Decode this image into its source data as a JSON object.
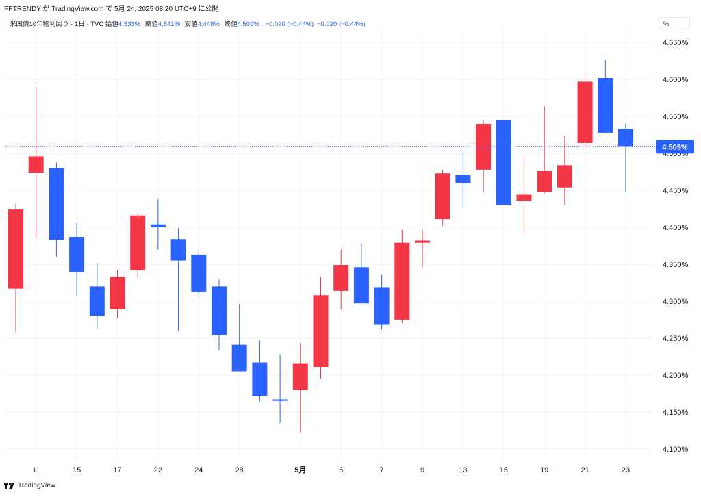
{
  "header": {
    "published": "FPTRENDY が TradingView.com で 5月 24, 2025 08:20 UTC+9 に公開"
  },
  "legend": {
    "symbol": "米国債10年物利回り · 1日 · TVC",
    "open_label": "始値",
    "open": "4.533%",
    "high_label": "高値",
    "high": "4.541%",
    "low_label": "安値",
    "low": "4.448%",
    "close_label": "終値",
    "close": "4.509%",
    "change": "−0.020 (−0.44%)",
    "change2": "−0.020 (−0.44%)"
  },
  "unit_button": "%",
  "footer": {
    "brand": "TradingView"
  },
  "colors": {
    "up": "#f23645",
    "down": "#2962ff",
    "grid": "#f0f3fa",
    "text": "#131722"
  },
  "chart_data": {
    "type": "candlestick",
    "y_unit": "%",
    "ylim": [
      4.085,
      4.665
    ],
    "yticks": [
      4.65,
      4.6,
      4.55,
      4.5,
      4.45,
      4.4,
      4.35,
      4.3,
      4.25,
      4.2,
      4.15,
      4.1
    ],
    "ytick_labels": [
      "4.650%",
      "4.600%",
      "4.550%",
      "4.500%",
      "4.450%",
      "4.400%",
      "4.350%",
      "4.300%",
      "4.250%",
      "4.200%",
      "4.150%",
      "4.100%"
    ],
    "x_labels": [
      {
        "label": "11",
        "index": 1
      },
      {
        "label": "15",
        "index": 3
      },
      {
        "label": "17",
        "index": 5
      },
      {
        "label": "22",
        "index": 7
      },
      {
        "label": "24",
        "index": 9
      },
      {
        "label": "28",
        "index": 11
      },
      {
        "label": "5月",
        "index": 14,
        "bold": true
      },
      {
        "label": "5",
        "index": 16
      },
      {
        "label": "7",
        "index": 18
      },
      {
        "label": "9",
        "index": 20
      },
      {
        "label": "13",
        "index": 22
      },
      {
        "label": "15",
        "index": 24
      },
      {
        "label": "19",
        "index": 26
      },
      {
        "label": "21",
        "index": 28
      },
      {
        "label": "23",
        "index": 30
      }
    ],
    "candles": [
      {
        "o": 4.317,
        "h": 4.432,
        "l": 4.259,
        "c": 4.424
      },
      {
        "o": 4.474,
        "h": 4.591,
        "l": 4.385,
        "c": 4.496
      },
      {
        "o": 4.48,
        "h": 4.488,
        "l": 4.36,
        "c": 4.383
      },
      {
        "o": 4.387,
        "h": 4.406,
        "l": 4.307,
        "c": 4.339
      },
      {
        "o": 4.32,
        "h": 4.352,
        "l": 4.262,
        "c": 4.28
      },
      {
        "o": 4.289,
        "h": 4.342,
        "l": 4.278,
        "c": 4.333
      },
      {
        "o": 4.342,
        "h": 4.418,
        "l": 4.333,
        "c": 4.416
      },
      {
        "o": 4.404,
        "h": 4.438,
        "l": 4.37,
        "c": 4.4
      },
      {
        "o": 4.384,
        "h": 4.399,
        "l": 4.259,
        "c": 4.355
      },
      {
        "o": 4.363,
        "h": 4.37,
        "l": 4.304,
        "c": 4.313
      },
      {
        "o": 4.32,
        "h": 4.329,
        "l": 4.234,
        "c": 4.254
      },
      {
        "o": 4.241,
        "h": 4.296,
        "l": 4.205,
        "c": 4.205
      },
      {
        "o": 4.217,
        "h": 4.247,
        "l": 4.164,
        "c": 4.172
      },
      {
        "o": 4.167,
        "h": 4.228,
        "l": 4.135,
        "c": 4.165
      },
      {
        "o": 4.18,
        "h": 4.243,
        "l": 4.123,
        "c": 4.216
      },
      {
        "o": 4.211,
        "h": 4.333,
        "l": 4.195,
        "c": 4.308
      },
      {
        "o": 4.314,
        "h": 4.37,
        "l": 4.289,
        "c": 4.349
      },
      {
        "o": 4.346,
        "h": 4.378,
        "l": 4.297,
        "c": 4.297
      },
      {
        "o": 4.319,
        "h": 4.336,
        "l": 4.262,
        "c": 4.268
      },
      {
        "o": 4.275,
        "h": 4.397,
        "l": 4.27,
        "c": 4.379
      },
      {
        "o": 4.379,
        "h": 4.397,
        "l": 4.346,
        "c": 4.382
      },
      {
        "o": 4.411,
        "h": 4.478,
        "l": 4.402,
        "c": 4.473
      },
      {
        "o": 4.471,
        "h": 4.506,
        "l": 4.426,
        "c": 4.46
      },
      {
        "o": 4.478,
        "h": 4.545,
        "l": 4.447,
        "c": 4.54
      },
      {
        "o": 4.545,
        "h": 4.545,
        "l": 4.43,
        "c": 4.43
      },
      {
        "o": 4.436,
        "h": 4.496,
        "l": 4.389,
        "c": 4.444
      },
      {
        "o": 4.448,
        "h": 4.564,
        "l": 4.446,
        "c": 4.476
      },
      {
        "o": 4.454,
        "h": 4.524,
        "l": 4.43,
        "c": 4.484
      },
      {
        "o": 4.514,
        "h": 4.609,
        "l": 4.505,
        "c": 4.597
      },
      {
        "o": 4.602,
        "h": 4.627,
        "l": 4.528,
        "c": 4.528
      },
      {
        "o": 4.533,
        "h": 4.541,
        "l": 4.448,
        "c": 4.509
      }
    ],
    "last_price": 4.509,
    "last_price_label": "4.509%"
  }
}
